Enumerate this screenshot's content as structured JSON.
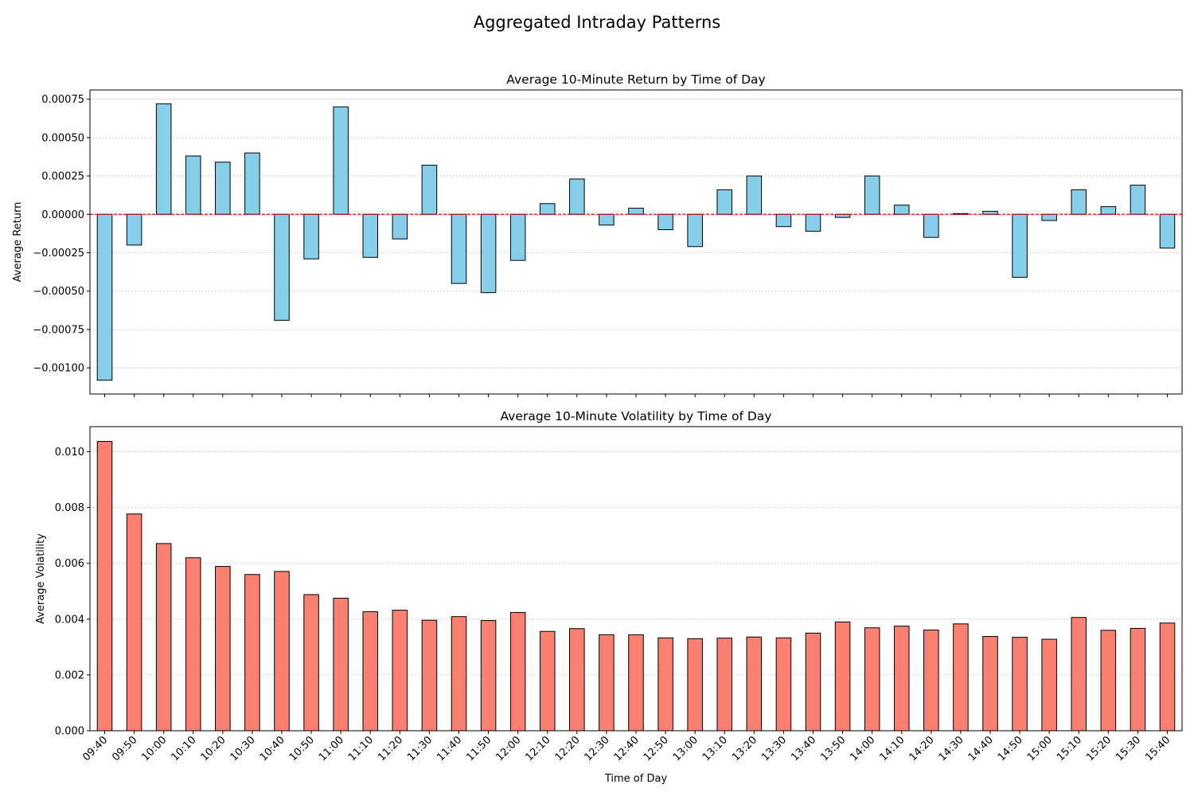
{
  "figure": {
    "suptitle": "Aggregated Intraday Patterns"
  },
  "chart_data": [
    {
      "type": "bar",
      "title": "Average 10-Minute Return by Time of Day",
      "xlabel": "",
      "ylabel": "Average Return",
      "ylim": [
        -0.00117,
        0.00081
      ],
      "yticks": [
        -0.001,
        -0.00075,
        -0.0005,
        -0.00025,
        0.0,
        0.00025,
        0.0005,
        0.00075
      ],
      "ytick_labels": [
        "−0.00100",
        "−0.00075",
        "−0.00050",
        "−0.00025",
        "0.00000",
        "0.00025",
        "0.00050",
        "0.00075"
      ],
      "grid": "y, dotted",
      "zero_line": {
        "style": "dashed",
        "color": "#ff0000"
      },
      "bar_color": "#87ceeb",
      "edge_color": "#000000",
      "categories": [
        "09:40",
        "09:50",
        "10:00",
        "10:10",
        "10:20",
        "10:30",
        "10:40",
        "10:50",
        "11:00",
        "11:10",
        "11:20",
        "11:30",
        "11:40",
        "11:50",
        "12:00",
        "12:10",
        "12:20",
        "12:30",
        "12:40",
        "12:50",
        "13:00",
        "13:10",
        "13:20",
        "13:30",
        "13:40",
        "13:50",
        "14:00",
        "14:10",
        "14:20",
        "14:30",
        "14:40",
        "14:50",
        "15:00",
        "15:10",
        "15:20",
        "15:30",
        "15:40"
      ],
      "values": [
        -0.00108,
        -0.0002,
        0.00072,
        0.00038,
        0.00034,
        0.0004,
        -0.00069,
        -0.00029,
        0.0007,
        -0.00028,
        -0.00016,
        0.00032,
        -0.00045,
        -0.00051,
        -0.0003,
        7e-05,
        0.00023,
        -7e-05,
        4e-05,
        -0.0001,
        -0.00021,
        0.00016,
        0.00025,
        -8e-05,
        -0.00011,
        -2e-05,
        0.00025,
        6e-05,
        -0.00015,
        5e-06,
        2e-05,
        -0.00041,
        -4e-05,
        0.00016,
        5e-05,
        0.00019,
        -0.00022
      ]
    },
    {
      "type": "bar",
      "title": "Average 10-Minute Volatility by Time of Day",
      "xlabel": "Time of Day",
      "ylabel": "Average Volatility",
      "ylim": [
        0.0,
        0.0109
      ],
      "yticks": [
        0.0,
        0.002,
        0.004,
        0.006,
        0.008,
        0.01
      ],
      "ytick_labels": [
        "0.000",
        "0.002",
        "0.004",
        "0.006",
        "0.008",
        "0.010"
      ],
      "grid": "y, dotted",
      "bar_color": "#fa8072",
      "edge_color": "#000000",
      "categories": [
        "09:40",
        "09:50",
        "10:00",
        "10:10",
        "10:20",
        "10:30",
        "10:40",
        "10:50",
        "11:00",
        "11:10",
        "11:20",
        "11:30",
        "11:40",
        "11:50",
        "12:00",
        "12:10",
        "12:20",
        "12:30",
        "12:40",
        "12:50",
        "13:00",
        "13:10",
        "13:20",
        "13:30",
        "13:40",
        "13:50",
        "14:00",
        "14:10",
        "14:20",
        "14:30",
        "14:40",
        "14:50",
        "15:00",
        "15:10",
        "15:20",
        "15:30",
        "15:40"
      ],
      "values": [
        0.01037,
        0.00777,
        0.00671,
        0.0062,
        0.00589,
        0.0056,
        0.00571,
        0.00488,
        0.00475,
        0.00427,
        0.00432,
        0.00396,
        0.00409,
        0.00395,
        0.00424,
        0.00356,
        0.00366,
        0.00344,
        0.00344,
        0.00333,
        0.0033,
        0.00332,
        0.00336,
        0.00333,
        0.0035,
        0.0039,
        0.00369,
        0.00375,
        0.00361,
        0.00383,
        0.00338,
        0.00335,
        0.00328,
        0.00406,
        0.0036,
        0.00367,
        0.00386
      ]
    }
  ]
}
